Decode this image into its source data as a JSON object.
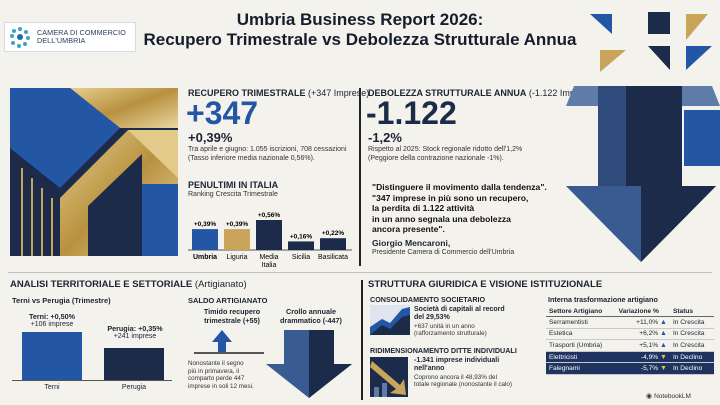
{
  "header": {
    "logo_line1": "CAMERA DI COMMERCIO",
    "logo_line2": "DELL'UMBRIA",
    "title_line1": "Umbria Business Report 2026:",
    "title_line2": "Recupero Trimestrale vs Debolezza Strutturale Annua"
  },
  "recupero": {
    "heading": "RECUPERO TRIMESTRALE",
    "heading_note": "(+347 Imprese)",
    "big": "+347",
    "pct": "+0,39%",
    "desc1": "Tra aprile e giugno: 1.055 iscrizioni, 708 cessazioni",
    "desc2": "(Tasso inferiore media nazionale 0,56%)."
  },
  "penultimi": {
    "heading": "PENULTIMI IN ITALIA",
    "sub": "Ranking Crescita Trimestrale"
  },
  "chart_data": {
    "type": "bar",
    "categories": [
      "Umbria",
      "Liguria",
      "Media Italia",
      "Sicilia",
      "Basilicata"
    ],
    "values": [
      0.39,
      0.39,
      0.56,
      0.16,
      0.22
    ],
    "value_labels": [
      "+0,39%",
      "+0,39%",
      "+0,56%",
      "+0,16%",
      "+0,22%"
    ],
    "colors": [
      "#2456a6",
      "#c9a55b",
      "#1c2b4a",
      "#1c2b4a",
      "#1c2b4a"
    ]
  },
  "debolezza": {
    "heading": "DEBOLEZZA STRUTTURALE ANNUA",
    "heading_note": "(-1.122 Imprese)",
    "big": "-1.122",
    "pct": "-1,2%",
    "desc1": "Rispetto al 2025: Stock regionale ridotto dell'1,2%",
    "desc2": "(Peggiore della contrazione nazionale -1%)."
  },
  "quote": {
    "line1": "\"Distinguere il movimento dalla tendenza\".",
    "line2": "\"347 imprese in più sono un recupero,",
    "line3": "la perdita di 1.122 attività",
    "line4": "in un anno segnala una debolezza",
    "line5": "ancora presente\".",
    "author": "Giorgio Mencaroni,",
    "role": "Presidente Camera di Commercio dell'Umbria"
  },
  "analisi": {
    "heading": "ANALISI TERRITORIALE E SETTORIALE",
    "heading_note": "(Artigianato)",
    "tp_title": "Terni vs Perugia (Trimestre)",
    "terni_pct": "Terni: +0,50%",
    "terni_imp": "+106 imprese",
    "perugia_pct": "Perugia: +0,35%",
    "perugia_imp": "+241 imprese",
    "terni_label": "Terni",
    "perugia_label": "Perugia",
    "saldo_title": "SALDO ARTIGIANATO",
    "timido": "Timido recupero",
    "timido2": "trimestrale (+55)",
    "crollo": "Crollo annuale",
    "crollo2": "drammatico (-447)",
    "note1": "Nonostante il segno",
    "note2": "più in primavera, il",
    "note3": "comparto perde 447",
    "note4": "imprese in soli 12 mesi."
  },
  "struttura": {
    "heading": "STRUTTURA GIURIDICA E VISIONE ISTITUZIONALE",
    "cons_title": "CONSOLIDAMENTO SOCIETARIO",
    "cons_b1": "Società di capitali al record",
    "cons_b2": "del 29,53%",
    "cons_d1": "+637 unità in un anno",
    "cons_d2": "(rafforzamento strutturale)",
    "rid_title": "RIDIMENSIONAMENTO DITTE INDIVIDUALI",
    "rid_b1": "-1.341 imprese individuali",
    "rid_b2": "nell'anno",
    "rid_d1": "Coprono ancora il 48,93% del",
    "rid_d2": "totale regionale (nonostante il calo)",
    "table_title": "Interna trasformazione artigiano",
    "col1": "Settore Artigiano",
    "col2": "Variazione %",
    "col3": "Status",
    "rows": [
      {
        "settore": "Serramentisti",
        "var": "+11,0%",
        "status": "In Crescita",
        "dir": "up"
      },
      {
        "settore": "Estetica",
        "var": "+6,2%",
        "status": "In Crescita",
        "dir": "up"
      },
      {
        "settore": "Trasporti (Umbria)",
        "var": "+5,1%",
        "status": "In Crescita",
        "dir": "up"
      },
      {
        "settore": "Elettricisti",
        "var": "-4,9%",
        "status": "In Declino",
        "dir": "down"
      },
      {
        "settore": "Falegnami",
        "var": "-5,7%",
        "status": "In Declino",
        "dir": "down"
      }
    ]
  },
  "footer": {
    "brand": "NotebookLM"
  }
}
